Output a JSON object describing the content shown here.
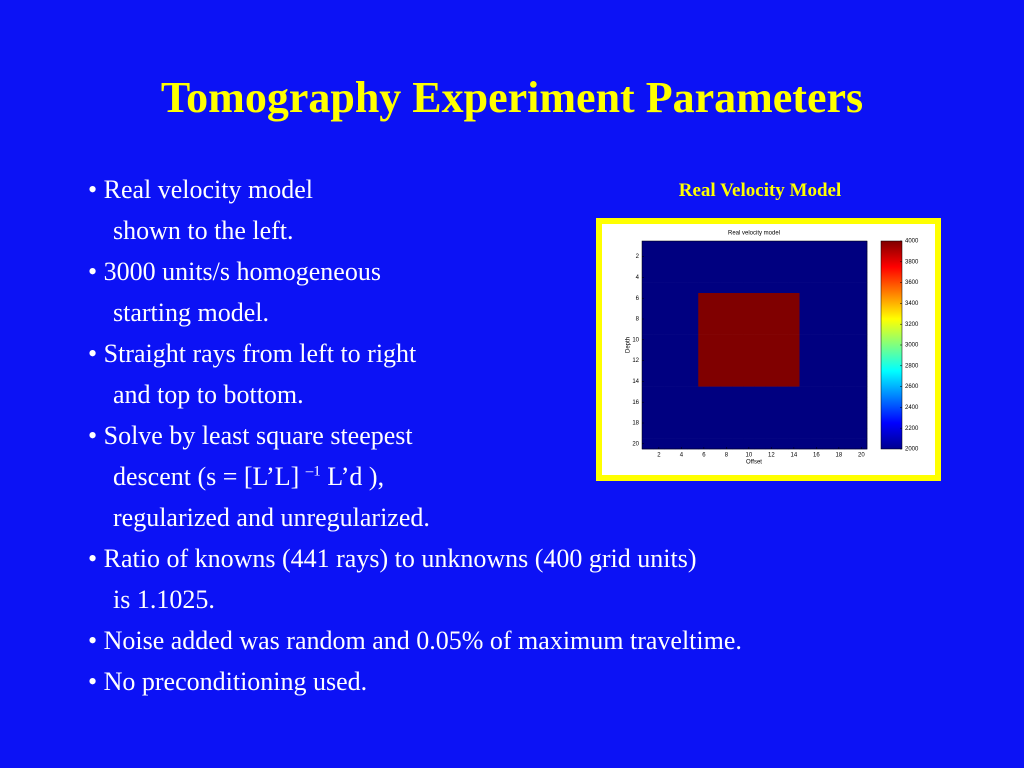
{
  "title": "Tomography Experiment Parameters",
  "bullets": [
    [
      "Real velocity model",
      "shown to the left."
    ],
    [
      "3000 units/s homogeneous",
      "starting model."
    ],
    [
      "Straight rays from left to right",
      "and top to bottom."
    ],
    [
      "Solve by least square steepest",
      {
        "text": "descent (s = [L’L] ",
        "superscript": "–1",
        "after": " L’d ),"
      },
      "regularized and unregularized."
    ],
    [
      "Ratio of knowns (441 rays) to unknowns (400 grid units)",
      "is 1.1025."
    ],
    [
      "Noise added was random and 0.05% of maximum traveltime."
    ],
    [
      "No preconditioning used."
    ]
  ],
  "figure_caption": "Real Velocity Model",
  "chart_data": {
    "type": "heatmap",
    "title": "Real velocity model",
    "x_label": "Offset",
    "y_label": "Depth",
    "colormap": "jet",
    "x": [
      1,
      2,
      3,
      4,
      5,
      6,
      7,
      8,
      9,
      10,
      11,
      12,
      13,
      14,
      15,
      16,
      17,
      18,
      19,
      20
    ],
    "y": [
      1,
      2,
      3,
      4,
      5,
      6,
      7,
      8,
      9,
      10,
      11,
      12,
      13,
      14,
      15,
      16,
      17,
      18,
      19,
      20
    ],
    "values": [
      [
        2000,
        2000,
        2000,
        2000,
        2000,
        2000,
        2000,
        2000,
        2000,
        2000,
        2000,
        2000,
        2000,
        2000,
        2000,
        2000,
        2000,
        2000,
        2000,
        2000
      ],
      [
        2000,
        2000,
        2000,
        2000,
        2000,
        2000,
        2000,
        2000,
        2000,
        2000,
        2000,
        2000,
        2000,
        2000,
        2000,
        2000,
        2000,
        2000,
        2000,
        2000
      ],
      [
        2000,
        2000,
        2000,
        2000,
        2000,
        2000,
        2000,
        2000,
        2000,
        2000,
        2000,
        2000,
        2000,
        2000,
        2000,
        2000,
        2000,
        2000,
        2000,
        2000
      ],
      [
        2000,
        2000,
        2000,
        2000,
        2000,
        2000,
        2000,
        2000,
        2000,
        2000,
        2000,
        2000,
        2000,
        2000,
        2000,
        2000,
        2000,
        2000,
        2000,
        2000
      ],
      [
        2000,
        2000,
        2000,
        2000,
        2000,
        2000,
        2000,
        2000,
        2000,
        2000,
        2000,
        2000,
        2000,
        2000,
        2000,
        2000,
        2000,
        2000,
        2000,
        2000
      ],
      [
        2000,
        2000,
        2000,
        2000,
        2000,
        4000,
        4000,
        4000,
        4000,
        4000,
        4000,
        4000,
        4000,
        4000,
        2000,
        2000,
        2000,
        2000,
        2000,
        2000
      ],
      [
        2000,
        2000,
        2000,
        2000,
        2000,
        4000,
        4000,
        4000,
        4000,
        4000,
        4000,
        4000,
        4000,
        4000,
        2000,
        2000,
        2000,
        2000,
        2000,
        2000
      ],
      [
        2000,
        2000,
        2000,
        2000,
        2000,
        4000,
        4000,
        4000,
        4000,
        4000,
        4000,
        4000,
        4000,
        4000,
        2000,
        2000,
        2000,
        2000,
        2000,
        2000
      ],
      [
        2000,
        2000,
        2000,
        2000,
        2000,
        4000,
        4000,
        4000,
        4000,
        4000,
        4000,
        4000,
        4000,
        4000,
        2000,
        2000,
        2000,
        2000,
        2000,
        2000
      ],
      [
        2000,
        2000,
        2000,
        2000,
        2000,
        4000,
        4000,
        4000,
        4000,
        4000,
        4000,
        4000,
        4000,
        4000,
        2000,
        2000,
        2000,
        2000,
        2000,
        2000
      ],
      [
        2000,
        2000,
        2000,
        2000,
        2000,
        4000,
        4000,
        4000,
        4000,
        4000,
        4000,
        4000,
        4000,
        4000,
        2000,
        2000,
        2000,
        2000,
        2000,
        2000
      ],
      [
        2000,
        2000,
        2000,
        2000,
        2000,
        4000,
        4000,
        4000,
        4000,
        4000,
        4000,
        4000,
        4000,
        4000,
        2000,
        2000,
        2000,
        2000,
        2000,
        2000
      ],
      [
        2000,
        2000,
        2000,
        2000,
        2000,
        4000,
        4000,
        4000,
        4000,
        4000,
        4000,
        4000,
        4000,
        4000,
        2000,
        2000,
        2000,
        2000,
        2000,
        2000
      ],
      [
        2000,
        2000,
        2000,
        2000,
        2000,
        4000,
        4000,
        4000,
        4000,
        4000,
        4000,
        4000,
        4000,
        4000,
        2000,
        2000,
        2000,
        2000,
        2000,
        2000
      ],
      [
        2000,
        2000,
        2000,
        2000,
        2000,
        2000,
        2000,
        2000,
        2000,
        2000,
        2000,
        2000,
        2000,
        2000,
        2000,
        2000,
        2000,
        2000,
        2000,
        2000
      ],
      [
        2000,
        2000,
        2000,
        2000,
        2000,
        2000,
        2000,
        2000,
        2000,
        2000,
        2000,
        2000,
        2000,
        2000,
        2000,
        2000,
        2000,
        2000,
        2000,
        2000
      ],
      [
        2000,
        2000,
        2000,
        2000,
        2000,
        2000,
        2000,
        2000,
        2000,
        2000,
        2000,
        2000,
        2000,
        2000,
        2000,
        2000,
        2000,
        2000,
        2000,
        2000
      ],
      [
        2000,
        2000,
        2000,
        2000,
        2000,
        2000,
        2000,
        2000,
        2000,
        2000,
        2000,
        2000,
        2000,
        2000,
        2000,
        2000,
        2000,
        2000,
        2000,
        2000
      ],
      [
        2000,
        2000,
        2000,
        2000,
        2000,
        2000,
        2000,
        2000,
        2000,
        2000,
        2000,
        2000,
        2000,
        2000,
        2000,
        2000,
        2000,
        2000,
        2000,
        2000
      ],
      [
        2000,
        2000,
        2000,
        2000,
        2000,
        2000,
        2000,
        2000,
        2000,
        2000,
        2000,
        2000,
        2000,
        2000,
        2000,
        2000,
        2000,
        2000,
        2000,
        2000
      ]
    ],
    "xlim": [
      0.5,
      20.5
    ],
    "ylim": [
      0.5,
      20.5
    ],
    "xticks": [
      2,
      4,
      6,
      8,
      10,
      12,
      14,
      16,
      18,
      20
    ],
    "yticks": [
      2,
      4,
      6,
      8,
      10,
      12,
      14,
      16,
      18,
      20
    ],
    "clim": [
      2000,
      4000
    ],
    "colorbar_ticks": [
      2000,
      2200,
      2400,
      2600,
      2800,
      3000,
      3200,
      3400,
      3600,
      3800,
      4000
    ]
  }
}
